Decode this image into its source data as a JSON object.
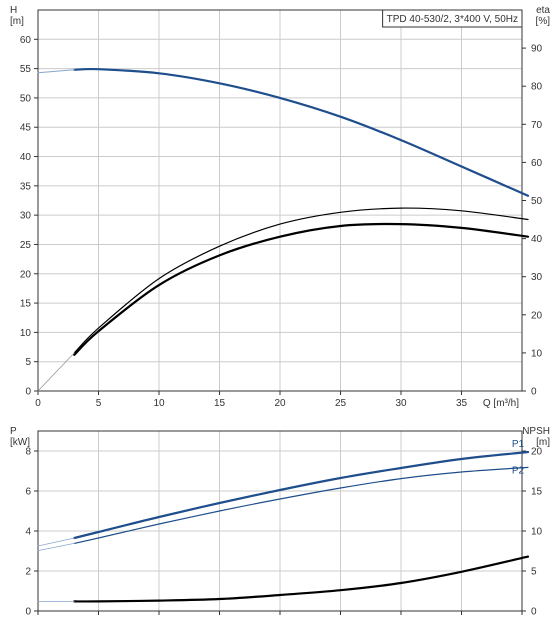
{
  "chart_data": [
    {
      "type": "line",
      "title": "TPD 40-530/2, 3*400 V, 50Hz",
      "xlabel": "Q [m³/h]",
      "ylabel_left": "H",
      "ylabel_left_unit": "[m]",
      "ylabel_right": "eta",
      "ylabel_right_unit": "[%]",
      "xlim": [
        0,
        40
      ],
      "ylim_left": [
        0,
        65
      ],
      "ylim_right": [
        0,
        100
      ],
      "x_ticks": [
        "0",
        "5",
        "10",
        "15",
        "20",
        "25",
        "30",
        "35"
      ],
      "y_left_ticks": [
        "0",
        "5",
        "10",
        "15",
        "20",
        "25",
        "30",
        "35",
        "40",
        "45",
        "50",
        "55",
        "60"
      ],
      "y_right_ticks": [
        "0",
        "10",
        "20",
        "30",
        "40",
        "50",
        "60",
        "70",
        "80",
        "90"
      ],
      "grid": true,
      "series": [
        {
          "axis": "left",
          "color": "#1f4e8c",
          "width": 2.2,
          "x": [
            3,
            5,
            10,
            15,
            20,
            25,
            30,
            35,
            40.5
          ],
          "y": [
            54.8,
            54.9,
            54.2,
            52.5,
            50.0,
            46.8,
            42.8,
            38.3,
            33.3
          ]
        },
        {
          "axis": "left",
          "color": "#8aa6cc",
          "width": 1,
          "x": [
            0,
            3
          ],
          "y": [
            54.3,
            54.8
          ]
        },
        {
          "axis": "right",
          "color": "#000000",
          "width": 1.2,
          "x": [
            3,
            5,
            10,
            15,
            20,
            25,
            30,
            35,
            40.5
          ],
          "y": [
            10.0,
            16.5,
            29.5,
            38.0,
            43.8,
            46.9,
            48.0,
            47.3,
            45.0
          ]
        },
        {
          "axis": "right",
          "color": "#000000",
          "width": 2.2,
          "x": [
            3,
            5,
            10,
            15,
            20,
            25,
            30,
            35,
            40.5
          ],
          "y": [
            9.5,
            15.7,
            27.8,
            35.6,
            40.5,
            43.3,
            43.8,
            42.8,
            40.5
          ]
        },
        {
          "axis": "right",
          "color": "#999999",
          "width": 0.8,
          "x": [
            0,
            3
          ],
          "y": [
            0,
            10.0
          ]
        }
      ]
    },
    {
      "type": "line",
      "xlabel": "",
      "ylabel_left": "P",
      "ylabel_left_unit": "[kW]",
      "ylabel_right": "NPSH",
      "ylabel_right_unit": "[m]",
      "xlim": [
        0,
        40
      ],
      "ylim_left": [
        0,
        9
      ],
      "ylim_right": [
        0,
        22.5
      ],
      "y_left_ticks": [
        "0",
        "2",
        "4",
        "6",
        "8"
      ],
      "y_right_ticks": [
        "0",
        "5",
        "10",
        "15",
        "20"
      ],
      "grid": true,
      "series": [
        {
          "name": "P1",
          "axis": "left",
          "color": "#1f4e8c",
          "width": 2.2,
          "x": [
            3,
            5,
            10,
            15,
            20,
            25,
            30,
            35,
            40.5
          ],
          "y": [
            3.65,
            3.95,
            4.7,
            5.4,
            6.05,
            6.65,
            7.15,
            7.6,
            7.95
          ]
        },
        {
          "name": "P2",
          "axis": "left",
          "color": "#1f4e8c",
          "width": 1.2,
          "x": [
            3,
            5,
            10,
            15,
            20,
            25,
            30,
            35,
            40.5
          ],
          "y": [
            3.38,
            3.65,
            4.35,
            5.0,
            5.6,
            6.15,
            6.62,
            6.95,
            7.18
          ]
        },
        {
          "axis": "left",
          "color": "#8aa6cc",
          "width": 0.8,
          "x": [
            0,
            3
          ],
          "y": [
            3.25,
            3.65
          ]
        },
        {
          "axis": "left",
          "color": "#8aa6cc",
          "width": 0.8,
          "x": [
            0,
            3
          ],
          "y": [
            3.02,
            3.38
          ]
        },
        {
          "axis": "right",
          "color": "#000000",
          "width": 2.2,
          "x": [
            3,
            5,
            10,
            15,
            20,
            25,
            30,
            35,
            40.5
          ],
          "y": [
            1.2,
            1.2,
            1.3,
            1.5,
            2.0,
            2.6,
            3.5,
            4.9,
            6.8
          ]
        },
        {
          "axis": "right",
          "color": "#8aa6cc",
          "width": 0.8,
          "x": [
            0,
            3
          ],
          "y": [
            1.2,
            1.2
          ]
        }
      ]
    }
  ]
}
